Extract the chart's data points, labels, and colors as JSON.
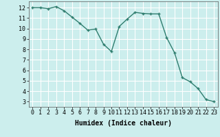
{
  "x": [
    0,
    1,
    2,
    3,
    4,
    5,
    6,
    7,
    8,
    9,
    10,
    11,
    12,
    13,
    14,
    15,
    16,
    17,
    18,
    19,
    20,
    21,
    22,
    23
  ],
  "y": [
    12.0,
    12.0,
    11.9,
    12.1,
    11.7,
    11.1,
    10.5,
    9.85,
    9.95,
    8.5,
    7.8,
    10.2,
    10.9,
    11.55,
    11.45,
    11.4,
    11.4,
    9.15,
    7.7,
    5.3,
    4.9,
    4.25,
    3.2,
    3.0
  ],
  "line_color": "#2e7d6e",
  "marker": "+",
  "marker_size": 3,
  "linewidth": 1.0,
  "xlabel": "Humidex (Indice chaleur)",
  "xlim": [
    -0.5,
    23.5
  ],
  "ylim": [
    2.5,
    12.6
  ],
  "yticks": [
    3,
    4,
    5,
    6,
    7,
    8,
    9,
    10,
    11,
    12
  ],
  "xticks": [
    0,
    1,
    2,
    3,
    4,
    5,
    6,
    7,
    8,
    9,
    10,
    11,
    12,
    13,
    14,
    15,
    16,
    17,
    18,
    19,
    20,
    21,
    22,
    23
  ],
  "bg_color": "#cceeed",
  "grid_color": "#ffffff",
  "axis_fontsize": 7,
  "tick_fontsize": 6
}
